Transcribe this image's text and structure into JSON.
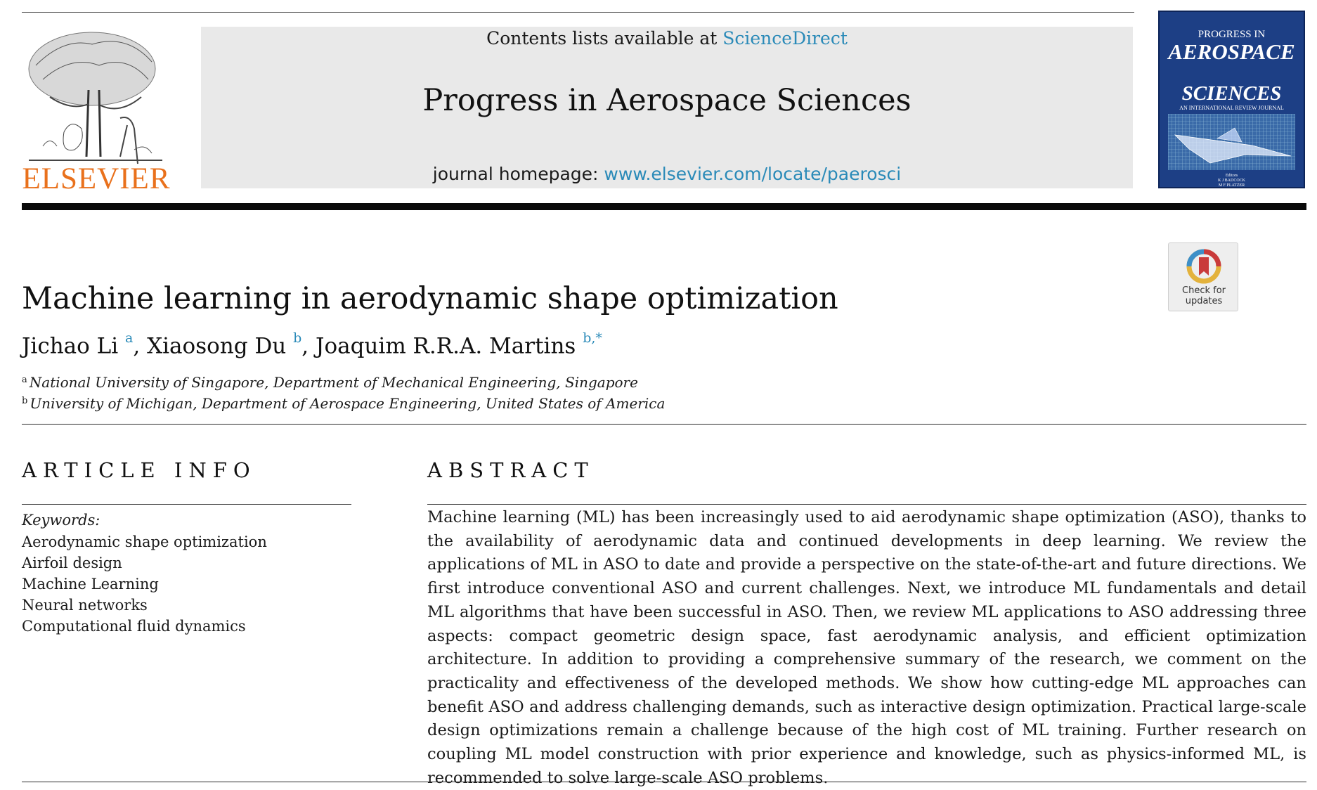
{
  "header": {
    "contents_prefix": "Contents lists available at ",
    "contents_link": "ScienceDirect",
    "journal_title": "Progress in Aerospace Sciences",
    "homepage_prefix": "journal homepage: ",
    "homepage_url": "www.elsevier.com/locate/paerosci",
    "publisher_logo_text": "ELSEVIER",
    "publisher_color": "#e9711c",
    "link_color": "#2a8ab8"
  },
  "cover": {
    "line1": "PROGRESS IN",
    "line2": "AEROSPACE",
    "line3": "SCIENCES",
    "subtitle": "AN INTERNATIONAL REVIEW JOURNAL",
    "editors_label": "Editors",
    "editor1": "K J BADCOCK",
    "editor2": "M F PLATZER",
    "background_color": "#1d3f85"
  },
  "check_updates": {
    "line1": "Check for",
    "line2": "updates"
  },
  "article": {
    "title": "Machine learning in aerodynamic shape optimization",
    "authors": [
      {
        "name": "Jichao Li",
        "sup": "a"
      },
      {
        "name": "Xiaosong Du",
        "sup": "b"
      },
      {
        "name": "Joaquim R.R.A. Martins",
        "sup": "b,*"
      }
    ],
    "affiliations": [
      {
        "mark": "a",
        "text": "National University of Singapore, Department of Mechanical Engineering, Singapore"
      },
      {
        "mark": "b",
        "text": "University of Michigan, Department of Aerospace Engineering, United States of America"
      }
    ]
  },
  "article_info": {
    "heading": "ARTICLE INFO",
    "keywords_label": "Keywords:",
    "keywords": [
      "Aerodynamic shape optimization",
      "Airfoil design",
      "Machine Learning",
      "Neural networks",
      "Computational fluid dynamics"
    ]
  },
  "abstract": {
    "heading": "ABSTRACT",
    "text": "Machine learning (ML) has been increasingly used to aid aerodynamic shape optimization (ASO), thanks to the availability of aerodynamic data and continued developments in deep learning. We review the applications of ML in ASO to date and provide a perspective on the state-of-the-art and future directions. We first introduce conventional ASO and current challenges. Next, we introduce ML fundamentals and detail ML algorithms that have been successful in ASO. Then, we review ML applications to ASO addressing three aspects: compact geometric design space, fast aerodynamic analysis, and efficient optimization architecture. In addition to providing a comprehensive summary of the research, we comment on the practicality and effectiveness of the developed methods. We show how cutting-edge ML approaches can benefit ASO and address challenging demands, such as interactive design optimization. Practical large-scale design optimizations remain a challenge because of the high cost of ML training. Further research on coupling ML model construction with prior experience and knowledge, such as physics-informed ML, is recommended to solve large-scale ASO problems."
  }
}
